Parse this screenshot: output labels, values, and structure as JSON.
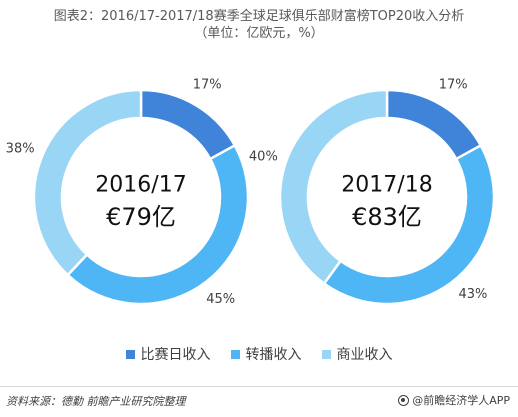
{
  "title": {
    "line1": "图表2：2016/17-2017/18赛季全球足球俱乐部财富榜TOP20收入分析",
    "line2": "（单位：亿欧元，%）"
  },
  "colors": {
    "matchday": "#3f84d9",
    "broadcast": "#4eb6f5",
    "commercial": "#99d5f4"
  },
  "chart_data": [
    {
      "type": "pie",
      "center_label": [
        "2016/17",
        "€79亿"
      ],
      "categories": [
        "比赛日收入",
        "转播收入",
        "商业收入"
      ],
      "values": [
        17,
        45,
        38
      ],
      "value_labels": [
        "17%",
        "45%",
        "38%"
      ]
    },
    {
      "type": "pie",
      "center_label": [
        "2017/18",
        "€83亿"
      ],
      "categories": [
        "比赛日收入",
        "转播收入",
        "商业收入"
      ],
      "values": [
        17,
        43,
        40
      ],
      "value_labels": [
        "17%",
        "43%",
        "40%"
      ]
    }
  ],
  "legend": [
    {
      "label": "比赛日收入",
      "color": "#3f84d9"
    },
    {
      "label": "转播收入",
      "color": "#4eb6f5"
    },
    {
      "label": "商业收入",
      "color": "#99d5f4"
    }
  ],
  "footer": {
    "source": "资料来源：德勤 前瞻产业研究院整理",
    "brand": "@前瞻经济学人APP"
  }
}
